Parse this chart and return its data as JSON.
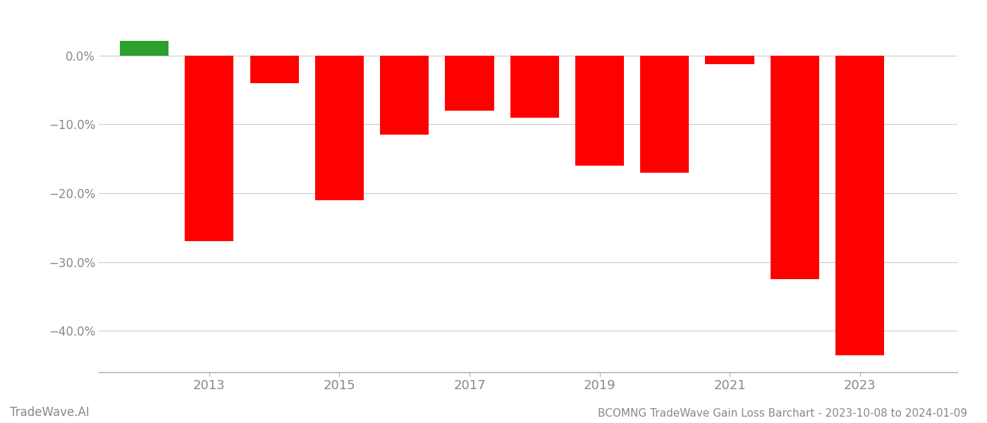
{
  "years": [
    2012,
    2013,
    2014,
    2015,
    2016,
    2017,
    2018,
    2019,
    2020,
    2021,
    2022,
    2023
  ],
  "values": [
    2.1,
    -27.0,
    -4.0,
    -21.0,
    -11.5,
    -8.0,
    -9.0,
    -16.0,
    -17.0,
    -1.2,
    -32.5,
    -43.5
  ],
  "bar_colors": [
    "#2ca02c",
    "#ff0000",
    "#ff0000",
    "#ff0000",
    "#ff0000",
    "#ff0000",
    "#ff0000",
    "#ff0000",
    "#ff0000",
    "#ff0000",
    "#ff0000",
    "#ff0000"
  ],
  "title": "BCOMNG TradeWave Gain Loss Barchart - 2023-10-08 to 2024-01-09",
  "watermark": "TradeWave.AI",
  "ylim": [
    -46,
    5
  ],
  "yticks": [
    0,
    -10,
    -20,
    -30,
    -40
  ],
  "background_color": "#ffffff",
  "grid_color": "#cccccc",
  "axis_color": "#aaaaaa",
  "tick_color": "#888888",
  "title_fontsize": 11,
  "watermark_fontsize": 12,
  "bar_width": 0.75
}
